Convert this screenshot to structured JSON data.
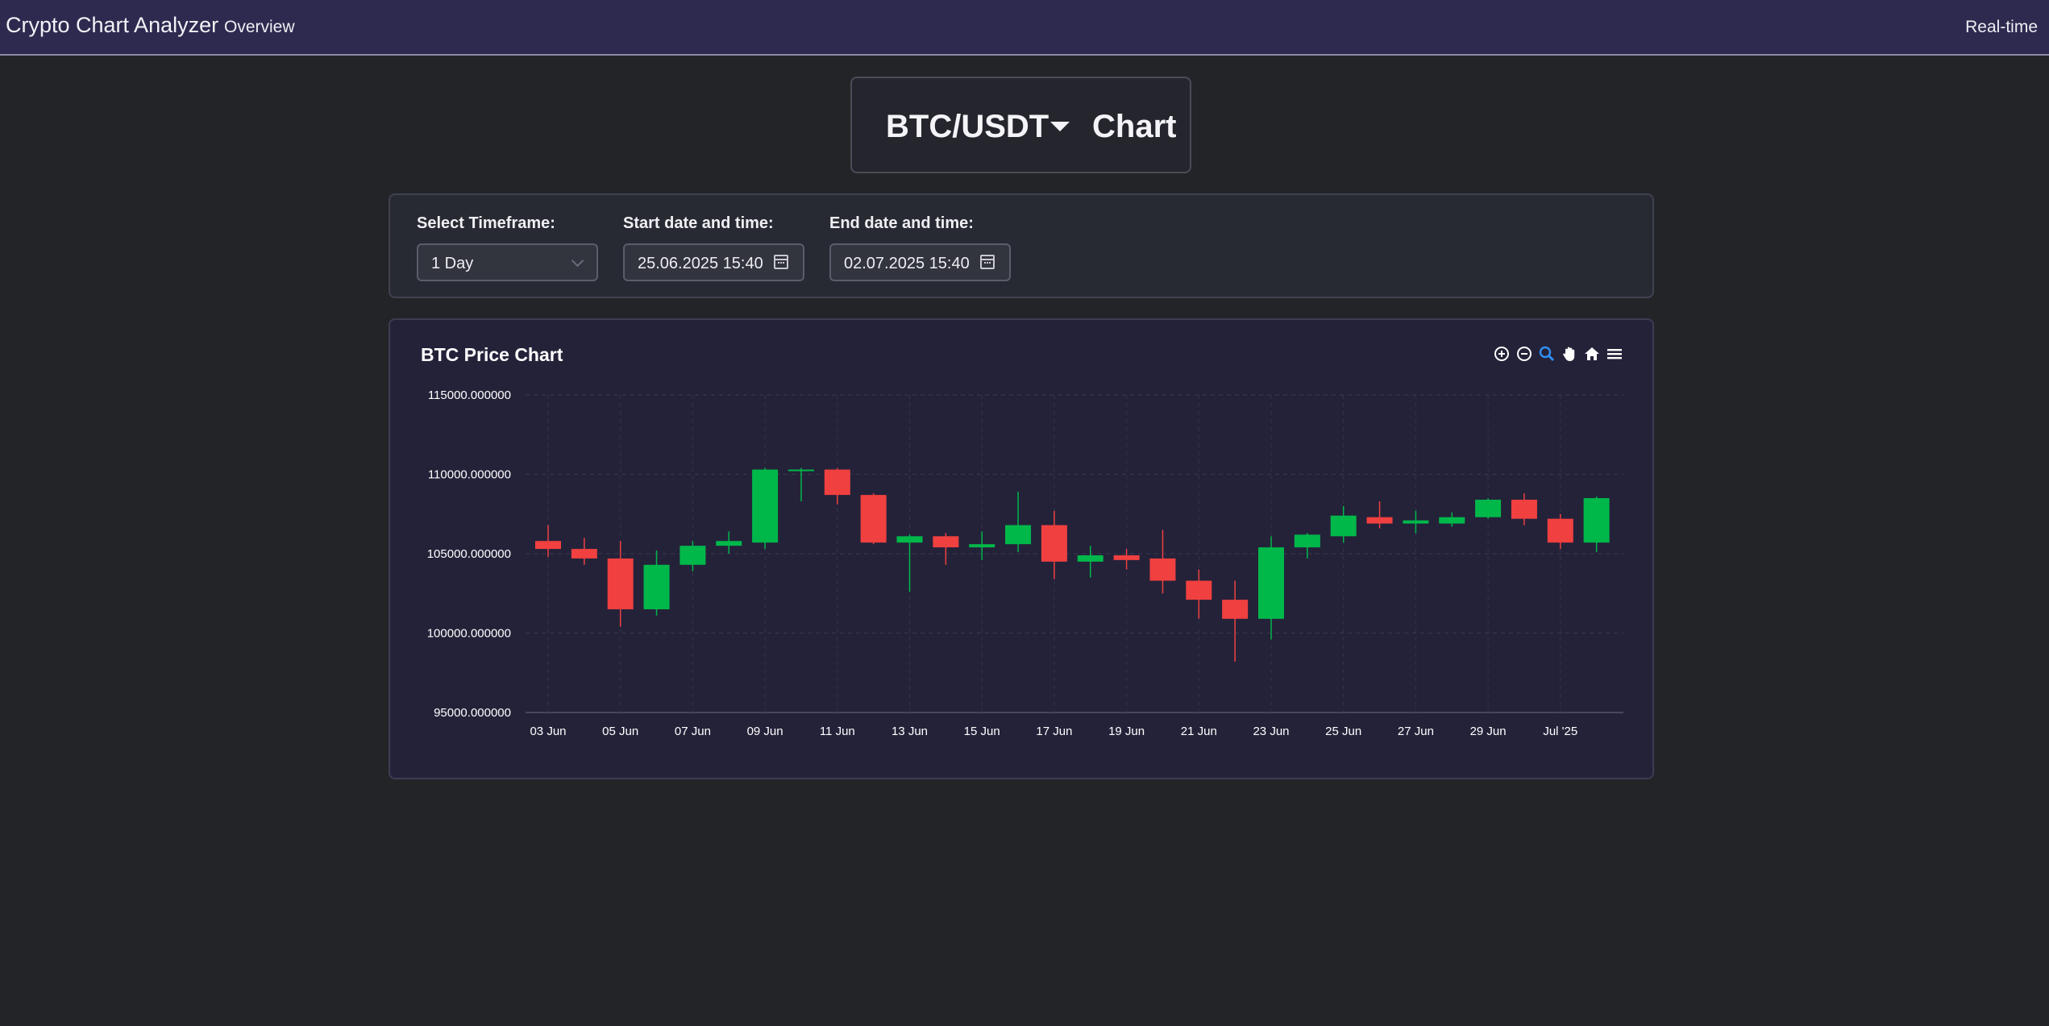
{
  "navbar": {
    "brand": "Crypto Chart Analyzer",
    "links": [
      "Overview"
    ],
    "right_link": "Real-time"
  },
  "pair_selector": {
    "pair": "BTC/USDT",
    "suffix": "Chart"
  },
  "controls": {
    "timeframe": {
      "label": "Select Timeframe:",
      "value": "1 Day"
    },
    "start": {
      "label": "Start date and time:",
      "value": "25.06.2025 15:40"
    },
    "end": {
      "label": "End date and time:",
      "value": "02.07.2025 15:40"
    }
  },
  "chart": {
    "title": "BTC Price Chart",
    "toolbar_icons": [
      "zoom-in-icon",
      "zoom-out-icon",
      "zoom-select-icon",
      "pan-hand-icon",
      "home-reset-icon",
      "menu-icon"
    ]
  },
  "colors": {
    "up": "#00b84a",
    "down": "#f04040",
    "navbar_bg": "#2e2a4f",
    "page_bg": "#222428",
    "card_bg": "#242239",
    "active_tool": "#2f8ff0"
  },
  "chart_data": {
    "type": "candlestick",
    "y_tick_labels": [
      "115000.000000",
      "110000.000000",
      "105000.000000",
      "100000.000000",
      "95000.000000"
    ],
    "y_ticks": [
      115000,
      110000,
      105000,
      100000,
      95000
    ],
    "ylim": [
      95000,
      115000
    ],
    "x_tick_labels": [
      "03 Jun",
      "05 Jun",
      "07 Jun",
      "09 Jun",
      "11 Jun",
      "13 Jun",
      "15 Jun",
      "17 Jun",
      "19 Jun",
      "21 Jun",
      "23 Jun",
      "25 Jun",
      "27 Jun",
      "29 Jun",
      "Jul '25"
    ],
    "x_tick_dates": [
      "2025-06-03",
      "2025-06-05",
      "2025-06-07",
      "2025-06-09",
      "2025-06-11",
      "2025-06-13",
      "2025-06-15",
      "2025-06-17",
      "2025-06-19",
      "2025-06-21",
      "2025-06-23",
      "2025-06-25",
      "2025-06-27",
      "2025-06-29",
      "2025-07-01"
    ],
    "grid": true,
    "legend": "none",
    "candles": [
      {
        "date": "2025-06-03",
        "o": 105800,
        "h": 106800,
        "l": 104800,
        "c": 105300
      },
      {
        "date": "2025-06-04",
        "o": 105300,
        "h": 106000,
        "l": 104300,
        "c": 104700
      },
      {
        "date": "2025-06-05",
        "o": 104700,
        "h": 105800,
        "l": 100400,
        "c": 101500
      },
      {
        "date": "2025-06-06",
        "o": 101500,
        "h": 105200,
        "l": 101100,
        "c": 104300
      },
      {
        "date": "2025-06-07",
        "o": 104300,
        "h": 105800,
        "l": 103900,
        "c": 105500
      },
      {
        "date": "2025-06-08",
        "o": 105500,
        "h": 106400,
        "l": 105000,
        "c": 105800
      },
      {
        "date": "2025-06-09",
        "o": 105700,
        "h": 110400,
        "l": 105300,
        "c": 110300
      },
      {
        "date": "2025-06-10",
        "o": 110300,
        "h": 110400,
        "l": 108300,
        "c": 110300
      },
      {
        "date": "2025-06-11",
        "o": 110300,
        "h": 110400,
        "l": 108100,
        "c": 108700
      },
      {
        "date": "2025-06-12",
        "o": 108700,
        "h": 108800,
        "l": 105600,
        "c": 105700
      },
      {
        "date": "2025-06-13",
        "o": 105700,
        "h": 106200,
        "l": 102600,
        "c": 106100
      },
      {
        "date": "2025-06-14",
        "o": 106100,
        "h": 106300,
        "l": 104300,
        "c": 105400
      },
      {
        "date": "2025-06-15",
        "o": 105400,
        "h": 106400,
        "l": 104600,
        "c": 105600
      },
      {
        "date": "2025-06-16",
        "o": 105600,
        "h": 108900,
        "l": 105100,
        "c": 106800
      },
      {
        "date": "2025-06-17",
        "o": 106800,
        "h": 107700,
        "l": 103400,
        "c": 104500
      },
      {
        "date": "2025-06-18",
        "o": 104500,
        "h": 105500,
        "l": 103500,
        "c": 104900
      },
      {
        "date": "2025-06-19",
        "o": 104900,
        "h": 105300,
        "l": 104000,
        "c": 104600
      },
      {
        "date": "2025-06-20",
        "o": 104700,
        "h": 106500,
        "l": 102500,
        "c": 103300
      },
      {
        "date": "2025-06-21",
        "o": 103300,
        "h": 104000,
        "l": 100900,
        "c": 102100
      },
      {
        "date": "2025-06-22",
        "o": 102100,
        "h": 103300,
        "l": 98200,
        "c": 100900
      },
      {
        "date": "2025-06-23",
        "o": 100900,
        "h": 106100,
        "l": 99600,
        "c": 105400
      },
      {
        "date": "2025-06-24",
        "o": 105400,
        "h": 106300,
        "l": 104700,
        "c": 106200
      },
      {
        "date": "2025-06-25",
        "o": 106100,
        "h": 108000,
        "l": 105700,
        "c": 107400
      },
      {
        "date": "2025-06-26",
        "o": 107300,
        "h": 108300,
        "l": 106600,
        "c": 106900
      },
      {
        "date": "2025-06-27",
        "o": 106900,
        "h": 107700,
        "l": 106300,
        "c": 107100
      },
      {
        "date": "2025-06-28",
        "o": 106900,
        "h": 107600,
        "l": 106700,
        "c": 107300
      },
      {
        "date": "2025-06-29",
        "o": 107300,
        "h": 108500,
        "l": 107200,
        "c": 108400
      },
      {
        "date": "2025-06-30",
        "o": 108400,
        "h": 108800,
        "l": 106800,
        "c": 107200
      },
      {
        "date": "2025-07-01",
        "o": 107200,
        "h": 107500,
        "l": 105300,
        "c": 105700
      },
      {
        "date": "2025-07-02",
        "o": 105700,
        "h": 108600,
        "l": 105100,
        "c": 108500
      }
    ]
  }
}
